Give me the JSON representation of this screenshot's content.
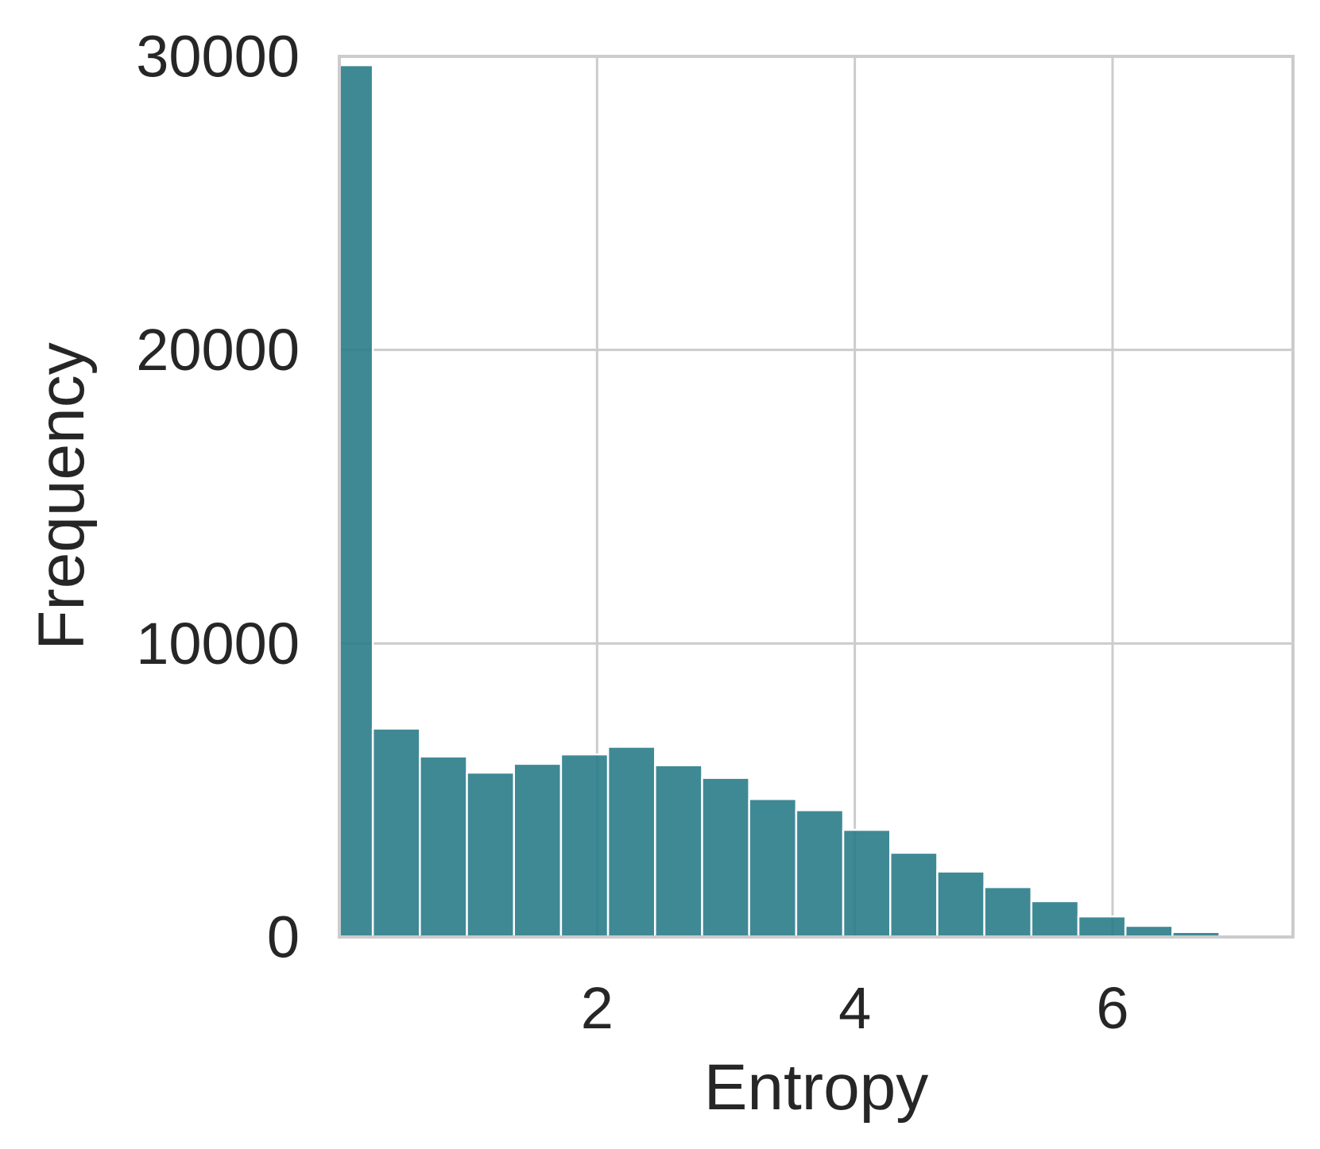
{
  "chart_data": {
    "type": "bar",
    "xlabel": "Entropy",
    "ylabel": "Frequency",
    "xlim": [
      0.0,
      7.4
    ],
    "ylim": [
      0,
      30000
    ],
    "xticks": [
      2,
      4,
      6
    ],
    "xtick_labels": [
      "2",
      "4",
      "6"
    ],
    "yticks": [
      0,
      10000,
      20000,
      30000
    ],
    "ytick_labels": [
      "0",
      "10000",
      "20000",
      "30000"
    ],
    "grid": true,
    "bar_color": "#2a7c8a",
    "bin_width": 0.365,
    "bins": [
      {
        "x_start": 0.0,
        "x_end": 0.26,
        "value": 29700
      },
      {
        "x_start": 0.26,
        "x_end": 0.625,
        "value": 7100
      },
      {
        "x_start": 0.625,
        "x_end": 0.99,
        "value": 6150
      },
      {
        "x_start": 0.99,
        "x_end": 1.355,
        "value": 5600
      },
      {
        "x_start": 1.355,
        "x_end": 1.72,
        "value": 5900
      },
      {
        "x_start": 1.72,
        "x_end": 2.085,
        "value": 6220
      },
      {
        "x_start": 2.085,
        "x_end": 2.45,
        "value": 6480
      },
      {
        "x_start": 2.45,
        "x_end": 2.815,
        "value": 5850
      },
      {
        "x_start": 2.815,
        "x_end": 3.18,
        "value": 5420
      },
      {
        "x_start": 3.18,
        "x_end": 3.545,
        "value": 4700
      },
      {
        "x_start": 3.545,
        "x_end": 3.91,
        "value": 4320
      },
      {
        "x_start": 3.91,
        "x_end": 4.275,
        "value": 3650
      },
      {
        "x_start": 4.275,
        "x_end": 4.64,
        "value": 2870
      },
      {
        "x_start": 4.64,
        "x_end": 5.005,
        "value": 2230
      },
      {
        "x_start": 5.005,
        "x_end": 5.37,
        "value": 1700
      },
      {
        "x_start": 5.37,
        "x_end": 5.735,
        "value": 1220
      },
      {
        "x_start": 5.735,
        "x_end": 6.1,
        "value": 700
      },
      {
        "x_start": 6.1,
        "x_end": 6.465,
        "value": 380
      },
      {
        "x_start": 6.465,
        "x_end": 6.83,
        "value": 170
      },
      {
        "x_start": 6.83,
        "x_end": 7.195,
        "value": 30
      }
    ]
  }
}
